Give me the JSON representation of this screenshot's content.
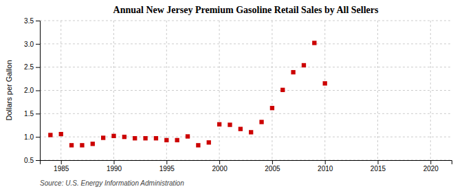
{
  "chart_data": {
    "type": "scatter",
    "title": "Annual New Jersey Premium Gasoline Retail Sales by All Sellers",
    "y_label": "Dollars per Gallon",
    "annotation": "Source: U.S. Energy Information Administration",
    "x": [
      1984,
      1985,
      1986,
      1987,
      1988,
      1989,
      1990,
      1991,
      1992,
      1993,
      1994,
      1995,
      1996,
      1997,
      1998,
      1999,
      2000,
      2001,
      2002,
      2003,
      2004,
      2005,
      2006,
      2007,
      2008,
      2009,
      2010
    ],
    "values": [
      1.04,
      1.06,
      0.82,
      0.82,
      0.85,
      0.98,
      1.02,
      1.0,
      0.97,
      0.97,
      0.97,
      0.93,
      0.93,
      1.01,
      0.82,
      0.88,
      1.27,
      1.26,
      1.17,
      1.1,
      1.32,
      1.62,
      2.01,
      2.39,
      2.54,
      3.02,
      2.15
    ],
    "color": "#cc0000",
    "marker": "square",
    "xlim": [
      1983,
      2022
    ],
    "ylim": [
      0.5,
      3.5
    ],
    "xticks": [
      1985,
      1990,
      1995,
      2000,
      2005,
      2010,
      2015,
      2020
    ],
    "yticks": [
      0.5,
      {
        "value": 1.0,
        "label": "1.0"
      },
      1.5,
      {
        "value": 2.0,
        "label": "2.0"
      },
      2.5,
      {
        "value": 3.0,
        "label": "3.0"
      },
      3.5
    ],
    "grid": true
  }
}
